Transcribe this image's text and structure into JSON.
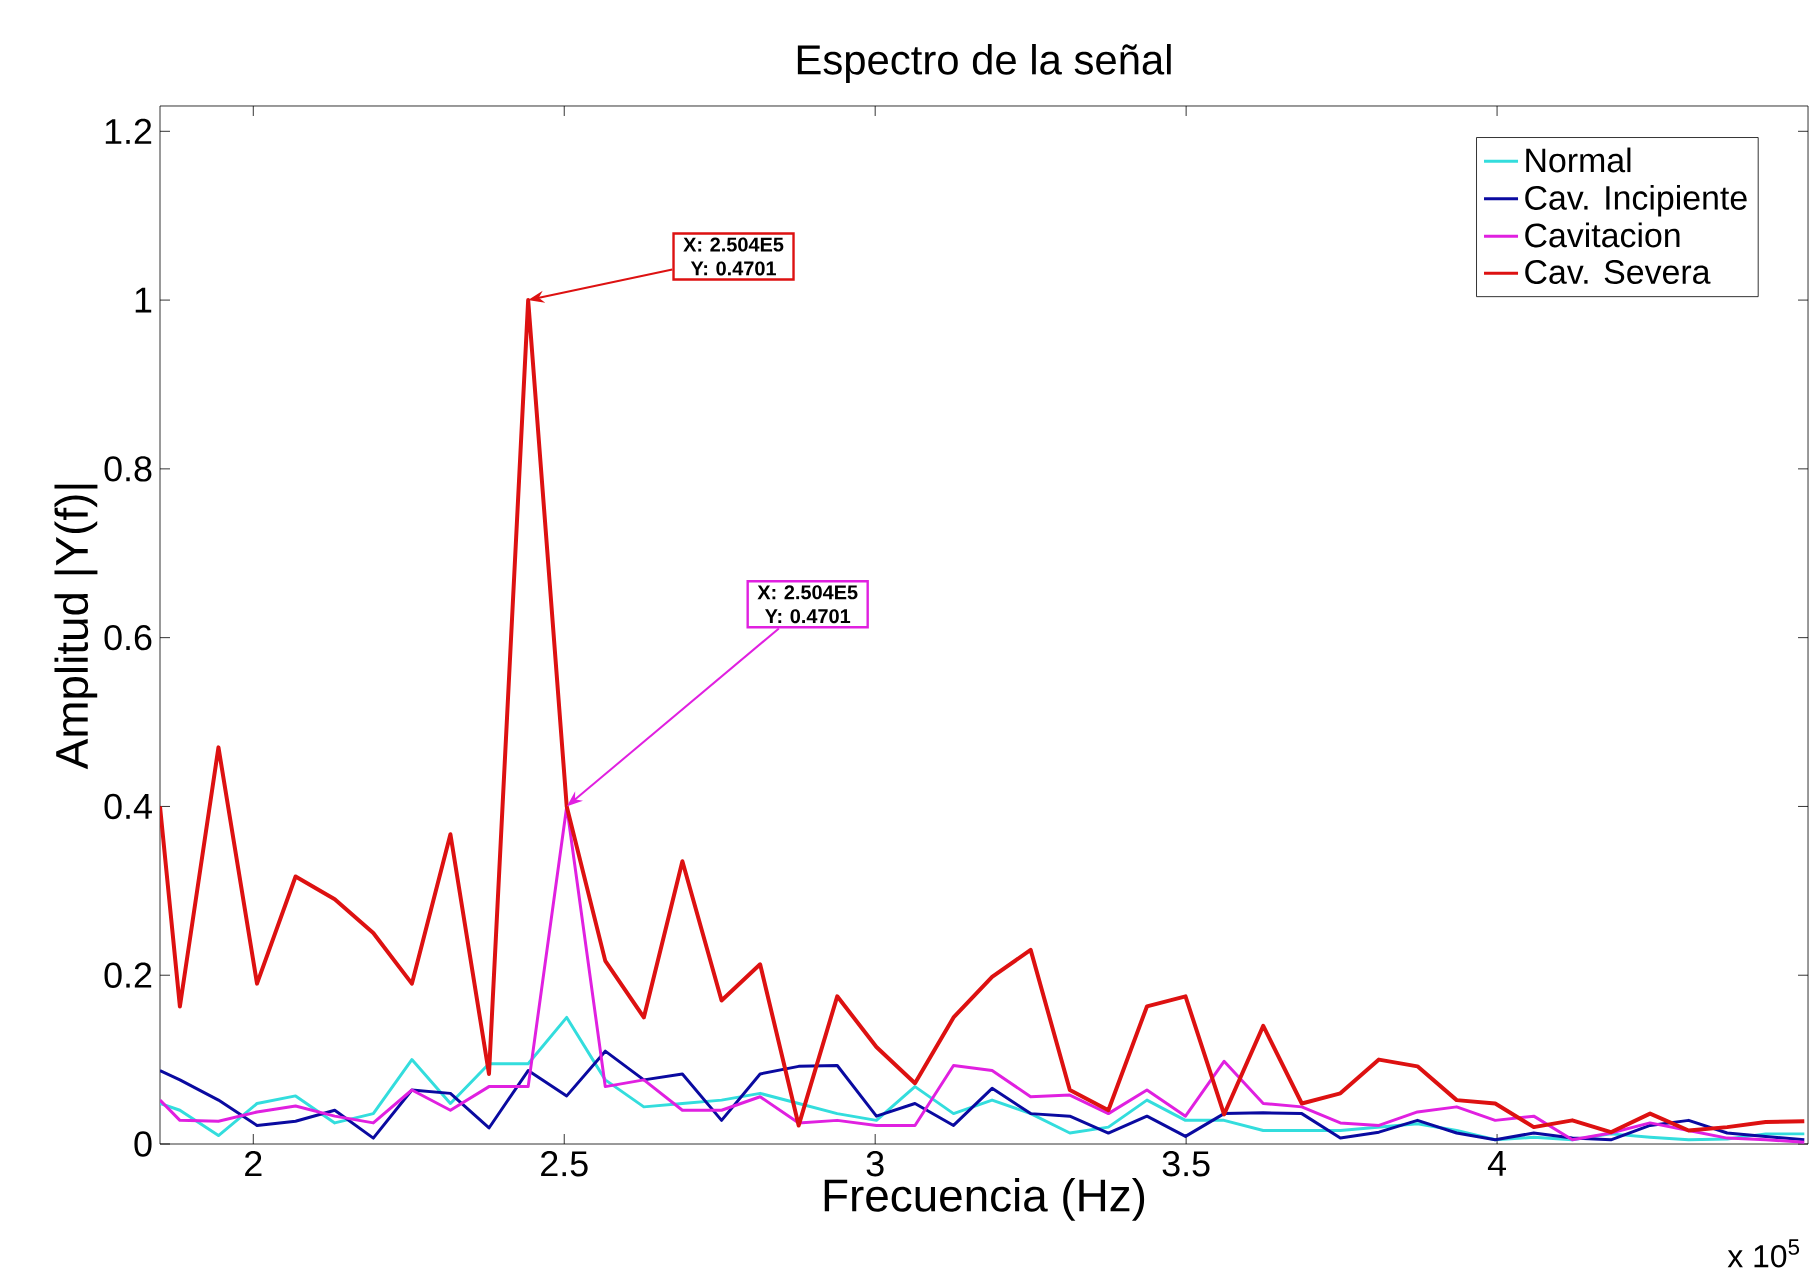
{
  "chart_data": {
    "type": "line",
    "title": "Espectro de la señal",
    "xlabel": "Frecuencia (Hz)",
    "ylabel": "Amplitud |Y(f)|",
    "x": [
      1.85,
      1.882,
      1.944,
      2.006,
      2.068,
      2.131,
      2.193,
      2.255,
      2.317,
      2.379,
      2.442,
      2.504,
      2.566,
      2.628,
      2.69,
      2.753,
      2.815,
      2.877,
      2.939,
      3.002,
      3.064,
      3.126,
      3.188,
      3.25,
      3.313,
      3.375,
      3.437,
      3.499,
      3.561,
      3.624,
      3.686,
      3.748,
      3.81,
      3.872,
      3.935,
      3.997,
      4.059,
      4.121,
      4.183,
      4.246,
      4.308,
      4.37,
      4.432,
      4.494
    ],
    "series": [
      {
        "name": "Normal",
        "color": "#33dddd",
        "values": [
          0.048,
          0.04,
          0.01,
          0.048,
          0.057,
          0.025,
          0.036,
          0.1,
          0.048,
          0.095,
          0.095,
          0.15,
          0.076,
          0.044,
          0.048,
          0.052,
          0.06,
          0.048,
          0.036,
          0.028,
          0.068,
          0.036,
          0.052,
          0.036,
          0.013,
          0.02,
          0.052,
          0.028,
          0.028,
          0.016,
          0.016,
          0.016,
          0.02,
          0.024,
          0.016,
          0.005,
          0.008,
          0.005,
          0.012,
          0.008,
          0.005,
          0.006,
          0.012,
          0.012
        ]
      },
      {
        "name": "Cav. Incipiente",
        "color": "#0a0aa0",
        "values": [
          0.087,
          0.076,
          0.052,
          0.022,
          0.027,
          0.04,
          0.007,
          0.064,
          0.06,
          0.019,
          0.087,
          0.057,
          0.11,
          0.076,
          0.083,
          0.028,
          0.083,
          0.092,
          0.093,
          0.033,
          0.048,
          0.022,
          0.066,
          0.036,
          0.033,
          0.013,
          0.033,
          0.009,
          0.036,
          0.037,
          0.036,
          0.007,
          0.014,
          0.028,
          0.013,
          0.005,
          0.013,
          0.007,
          0.005,
          0.022,
          0.028,
          0.013,
          0.009,
          0.005
        ]
      },
      {
        "name": "Cavitacion",
        "color": "#e020e0",
        "values": [
          0.052,
          0.028,
          0.027,
          0.038,
          0.045,
          0.033,
          0.025,
          0.064,
          0.04,
          0.068,
          0.068,
          0.4,
          0.068,
          0.076,
          0.04,
          0.04,
          0.056,
          0.025,
          0.028,
          0.022,
          0.022,
          0.093,
          0.087,
          0.056,
          0.058,
          0.036,
          0.064,
          0.033,
          0.098,
          0.048,
          0.044,
          0.025,
          0.022,
          0.038,
          0.044,
          0.028,
          0.033,
          0.005,
          0.013,
          0.025,
          0.016,
          0.007,
          0.005,
          0.002
        ]
      },
      {
        "name": "Cav. Severa",
        "color": "#dd1111",
        "values": [
          0.4,
          0.163,
          0.47,
          0.19,
          0.317,
          0.29,
          0.25,
          0.19,
          0.367,
          0.083,
          1.0,
          0.4,
          0.217,
          0.15,
          0.335,
          0.17,
          0.213,
          0.022,
          0.175,
          0.115,
          0.072,
          0.15,
          0.198,
          0.23,
          0.064,
          0.04,
          0.163,
          0.175,
          0.035,
          0.14,
          0.048,
          0.06,
          0.1,
          0.092,
          0.052,
          0.048,
          0.02,
          0.028,
          0.014,
          0.036,
          0.016,
          0.02,
          0.026,
          0.027
        ]
      }
    ],
    "xlim": [
      1.85,
      4.5
    ],
    "ylim": [
      0,
      1.23
    ],
    "xticks": [
      2,
      2.5,
      3,
      3.5,
      4
    ],
    "yticks": [
      0,
      0.2,
      0.4,
      0.6,
      0.8,
      1,
      1.2
    ],
    "annotations": [
      {
        "text": "X: 2.504E5 Y: 0.4701",
        "x": 2.442,
        "y": 1.0
      },
      {
        "text": "X: 2.504E5 Y: 0.4701",
        "x": 2.504,
        "y": 0.4
      },
      "x 10$^{5}$"
    ],
    "legend": "top right",
    "grid": false,
    "marker": "none",
    "line_style": "solid"
  }
}
